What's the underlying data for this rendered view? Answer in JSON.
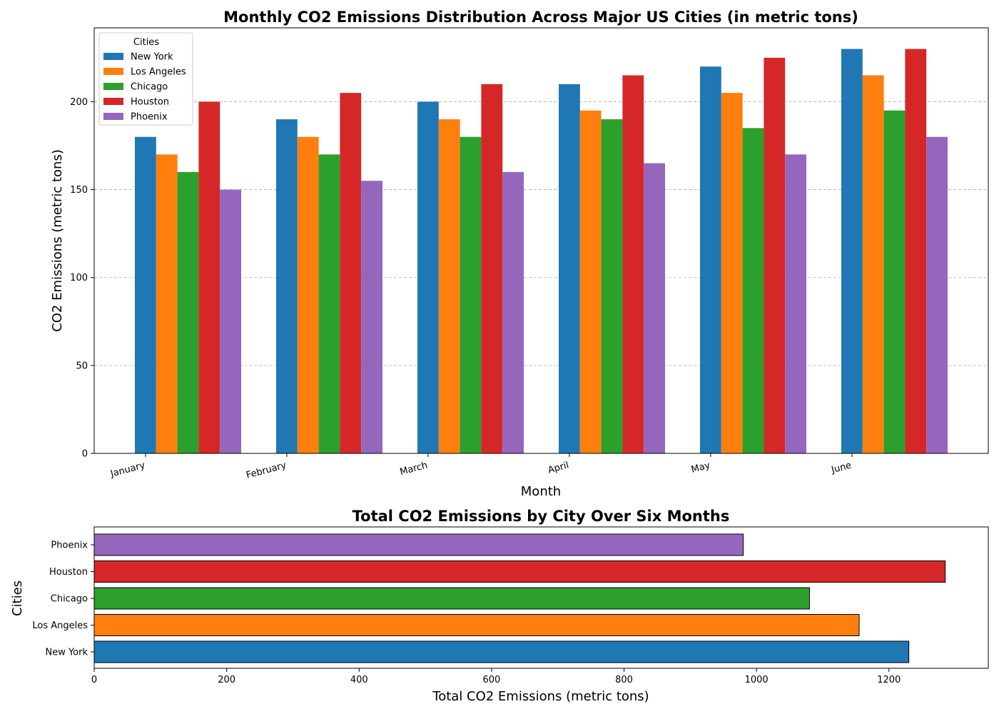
{
  "chart_data": [
    {
      "type": "bar",
      "title": "Monthly CO2 Emissions Distribution Across Major US Cities (in metric tons)",
      "xlabel": "Month",
      "ylabel": "CO2 Emissions (metric tons)",
      "categories": [
        "January",
        "February",
        "March",
        "April",
        "May",
        "June"
      ],
      "ylim": [
        0,
        242
      ],
      "yticks": [
        0,
        50,
        100,
        150,
        200
      ],
      "grid": "y-dashed",
      "legend": {
        "title": "Cities",
        "placement": "upper-left"
      },
      "series": [
        {
          "name": "New York",
          "color": "#1f77b4",
          "values": [
            180,
            190,
            200,
            210,
            220,
            230
          ]
        },
        {
          "name": "Los Angeles",
          "color": "#ff7f0e",
          "values": [
            170,
            180,
            190,
            195,
            205,
            215
          ]
        },
        {
          "name": "Chicago",
          "color": "#2ca02c",
          "values": [
            160,
            170,
            180,
            190,
            185,
            195
          ]
        },
        {
          "name": "Houston",
          "color": "#d62728",
          "values": [
            200,
            205,
            210,
            215,
            225,
            230
          ]
        },
        {
          "name": "Phoenix",
          "color": "#9467bd",
          "values": [
            150,
            155,
            160,
            165,
            170,
            180
          ]
        }
      ]
    },
    {
      "type": "bar",
      "orientation": "horizontal",
      "title": "Total CO2 Emissions by City Over Six Months",
      "xlabel": "Total CO2 Emissions (metric tons)",
      "ylabel": "Cities",
      "categories": [
        "New York",
        "Los Angeles",
        "Chicago",
        "Houston",
        "Phoenix"
      ],
      "values": [
        1230,
        1155,
        1080,
        1285,
        980
      ],
      "colors": [
        "#1f77b4",
        "#ff7f0e",
        "#2ca02c",
        "#d62728",
        "#9467bd"
      ],
      "xlim": [
        0,
        1350
      ],
      "xticks": [
        0,
        200,
        400,
        600,
        800,
        1000,
        1200
      ]
    }
  ]
}
